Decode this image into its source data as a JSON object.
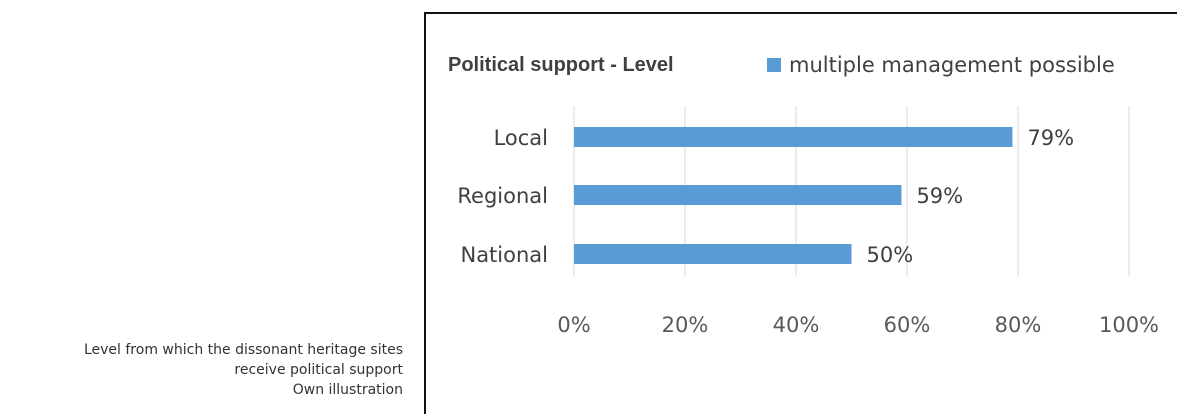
{
  "caption": {
    "line1": "Level from which the dissonant heritage sites",
    "line2": "receive political support",
    "line3": "Own illustration"
  },
  "chart_data": {
    "type": "bar",
    "orientation": "horizontal",
    "title": "Political support - Level",
    "categories": [
      "Local",
      "Regional",
      "National"
    ],
    "series": [
      {
        "name": "multiple management possible",
        "values": [
          79,
          59,
          50
        ],
        "color": "#5B9BD5"
      }
    ],
    "data_labels": [
      "79%",
      "59%",
      "50%"
    ],
    "xlim": [
      0,
      100
    ],
    "xticks": [
      "0%",
      "20%",
      "40%",
      "60%",
      "80%",
      "100%"
    ],
    "xlabel": "",
    "ylabel": "",
    "grid": true,
    "gridline_color": "#D9D9D9",
    "legend_placement": "top"
  }
}
